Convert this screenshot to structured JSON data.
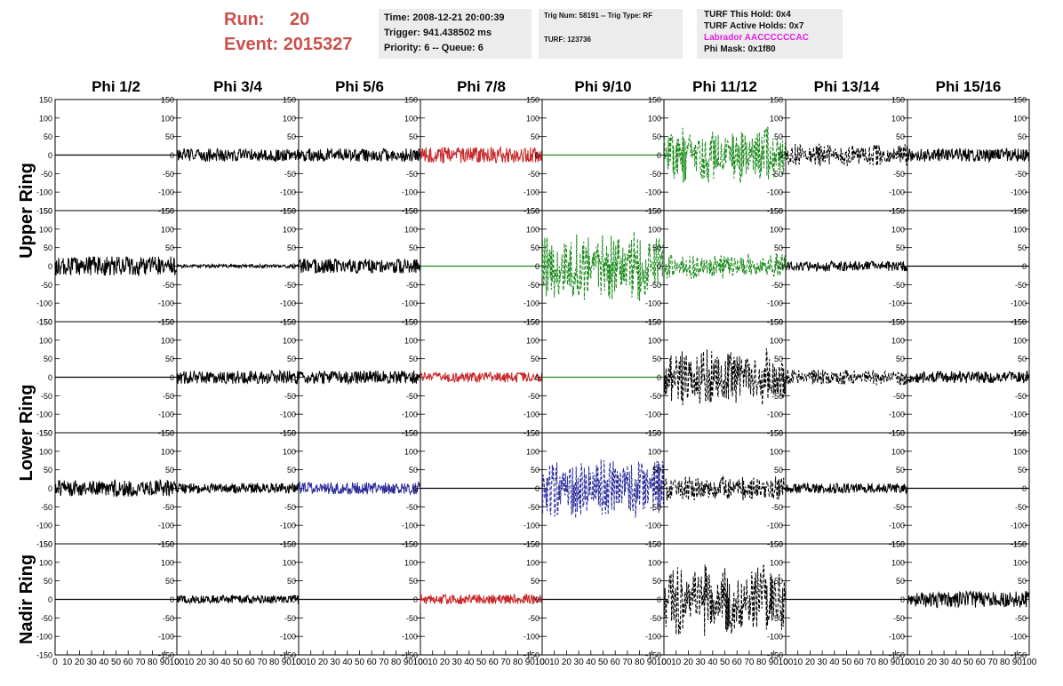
{
  "header": {
    "run_label": "Run:",
    "run_value": "20",
    "event_label": "Event:",
    "event_value": "2015327",
    "time_line": "Time: 2008-12-21 20:00:39",
    "trigger_line": "Trigger: 941.438502 ms",
    "priority_line": "Priority: 6 -- Queue: 6",
    "trig_line": "Trig Num: 58191 -- Trig Type: RF",
    "turf_line": "TURF: 123736",
    "turf_hold": "TURF This Hold: 0x4",
    "turf_active": "TURF Active Holds: 0x7",
    "labrador": "Labrador AACCCCCCAC",
    "phi_mask": "Phi Mask: 0x1f80",
    "labrador_color": "#e020e0",
    "run_color": "#c9504b"
  },
  "chart_data": {
    "type": "line",
    "columns": [
      "Phi 1/2",
      "Phi 3/4",
      "Phi 5/6",
      "Phi 7/8",
      "Phi 9/10",
      "Phi 11/12",
      "Phi 13/14",
      "Phi 15/16"
    ],
    "row_groups": [
      {
        "label": "Upper Ring",
        "rows": [
          0,
          1
        ]
      },
      {
        "label": "Lower Ring",
        "rows": [
          2,
          3
        ]
      },
      {
        "label": "Nadir Ring",
        "rows": [
          4
        ]
      }
    ],
    "xlim": [
      0,
      100
    ],
    "x_ticks": [
      "0",
      "10",
      "20",
      "30",
      "40",
      "50",
      "60",
      "70",
      "80",
      "90",
      "100"
    ],
    "ylim": [
      -150,
      150
    ],
    "y_ticks": [
      "150",
      "100",
      "50",
      "0",
      "-50",
      "-100",
      "-150"
    ],
    "y_tick_values": [
      150,
      100,
      50,
      0,
      -50,
      -100,
      -150
    ],
    "colors": {
      "black": "#000000",
      "red": "#c8282a",
      "green": "#1a8a1a",
      "blue": "#2b2b9a"
    },
    "traces": [
      [
        {
          "amp": 0,
          "color": "black",
          "dashed": false,
          "seed": 1
        },
        {
          "amp": 20,
          "color": "black",
          "dashed": false,
          "seed": 2
        },
        {
          "amp": 20,
          "color": "black",
          "dashed": false,
          "seed": 3
        },
        {
          "amp": 25,
          "color": "red",
          "dashed": false,
          "seed": 4
        },
        {
          "amp": 0,
          "color": "green",
          "dashed": false,
          "seed": 5
        },
        {
          "amp": 85,
          "color": "green",
          "dashed": true,
          "seed": 6
        },
        {
          "amp": 35,
          "color": "black",
          "dashed": true,
          "seed": 7
        },
        {
          "amp": 20,
          "color": "black",
          "dashed": false,
          "seed": 8
        }
      ],
      [
        {
          "amp": 30,
          "color": "black",
          "dashed": false,
          "seed": 9
        },
        {
          "amp": 5,
          "color": "black",
          "dashed": false,
          "seed": 10
        },
        {
          "amp": 22,
          "color": "black",
          "dashed": false,
          "seed": 11
        },
        {
          "amp": 0,
          "color": "green",
          "dashed": false,
          "seed": 12
        },
        {
          "amp": 110,
          "color": "green",
          "dashed": true,
          "seed": 13
        },
        {
          "amp": 40,
          "color": "green",
          "dashed": true,
          "seed": 14
        },
        {
          "amp": 15,
          "color": "black",
          "dashed": false,
          "seed": 15
        },
        {
          "amp": 0,
          "color": "black",
          "dashed": false,
          "seed": 16
        }
      ],
      [
        {
          "amp": 0,
          "color": "black",
          "dashed": false,
          "seed": 17
        },
        {
          "amp": 20,
          "color": "black",
          "dashed": false,
          "seed": 18
        },
        {
          "amp": 20,
          "color": "black",
          "dashed": false,
          "seed": 19
        },
        {
          "amp": 15,
          "color": "red",
          "dashed": false,
          "seed": 20
        },
        {
          "amp": 0,
          "color": "green",
          "dashed": false,
          "seed": 21
        },
        {
          "amp": 90,
          "color": "black",
          "dashed": true,
          "seed": 22
        },
        {
          "amp": 25,
          "color": "black",
          "dashed": true,
          "seed": 23
        },
        {
          "amp": 18,
          "color": "black",
          "dashed": false,
          "seed": 24
        }
      ],
      [
        {
          "amp": 25,
          "color": "black",
          "dashed": false,
          "seed": 25
        },
        {
          "amp": 15,
          "color": "black",
          "dashed": false,
          "seed": 26
        },
        {
          "amp": 18,
          "color": "blue",
          "dashed": false,
          "seed": 27
        },
        {
          "amp": 0,
          "color": "black",
          "dashed": false,
          "seed": 28
        },
        {
          "amp": 95,
          "color": "blue",
          "dashed": true,
          "seed": 29
        },
        {
          "amp": 40,
          "color": "black",
          "dashed": true,
          "seed": 30
        },
        {
          "amp": 15,
          "color": "black",
          "dashed": false,
          "seed": 31
        },
        {
          "amp": 0,
          "color": "black",
          "dashed": false,
          "seed": 32
        }
      ],
      [
        {
          "amp": 0,
          "color": "black",
          "dashed": false,
          "seed": 33
        },
        {
          "amp": 12,
          "color": "black",
          "dashed": false,
          "seed": 34
        },
        {
          "amp": 0,
          "color": "black",
          "dashed": false,
          "seed": 35
        },
        {
          "amp": 15,
          "color": "red",
          "dashed": false,
          "seed": 36
        },
        {
          "amp": 0,
          "color": "black",
          "dashed": false,
          "seed": 37
        },
        {
          "amp": 110,
          "color": "black",
          "dashed": true,
          "seed": 38
        },
        {
          "amp": 0,
          "color": "black",
          "dashed": false,
          "seed": 39
        },
        {
          "amp": 25,
          "color": "black",
          "dashed": false,
          "seed": 40
        }
      ]
    ]
  }
}
